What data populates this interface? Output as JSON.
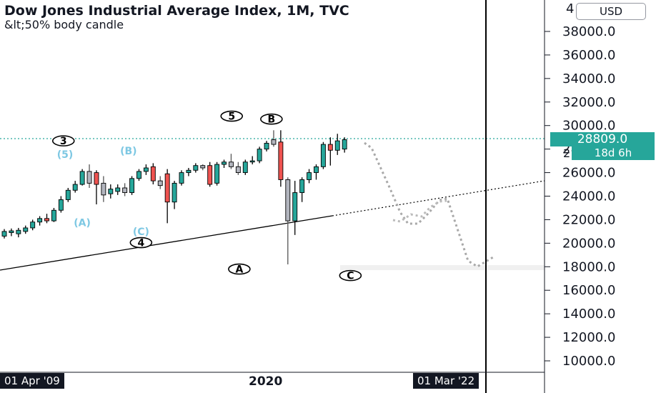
{
  "header": {
    "title": "Dow Jones Industrial Average Index, 1M, TVC",
    "subtitle": "&lt;50% body candle",
    "currency_button": "USD"
  },
  "price_axis": {
    "top_partial": "4",
    "last_price": "28809.0",
    "countdown": "18d 6h",
    "behind_countdown": "2"
  },
  "time_axis": {
    "left_date": "01 Apr '09",
    "year_label": "2020",
    "right_date": "01 Mar '22"
  },
  "colors": {
    "bull": "#26a69a",
    "bear": "#ef5350",
    "retrace": "#b2b5be",
    "wave_light": "#7ec8e3",
    "projection": "#a9a9a9"
  },
  "chart_data": {
    "type": "candlestick",
    "title": "Dow Jones Industrial Average Index, 1M, TVC",
    "subtitle": "&lt;50% body candle",
    "y_ticks": [
      10000,
      12000,
      14000,
      16000,
      18000,
      20000,
      22000,
      24000,
      26000,
      28000,
      30000,
      32000,
      34000,
      36000,
      38000
    ],
    "y_tick_labels": [
      "10000.0",
      "12000.0",
      "14000.0",
      "16000.0",
      "18000.0",
      "20000.0",
      "22000.0",
      "24000.0",
      "26000.0",
      "28000.0",
      "30000.0",
      "32000.0",
      "34000.0",
      "36000.0",
      "38000.0"
    ],
    "ylim": [
      9000,
      40500
    ],
    "last_price": 28809.0,
    "x_labels": [
      "01 Apr '09",
      "2020",
      "01 Mar '22"
    ],
    "candles": [
      {
        "o": 20600,
        "c": 21000,
        "h": 21200,
        "l": 20400,
        "k": "bull"
      },
      {
        "o": 20900,
        "c": 21050,
        "h": 21250,
        "l": 20600,
        "k": "bull"
      },
      {
        "o": 20800,
        "c": 21100,
        "h": 21300,
        "l": 20500,
        "k": "bull"
      },
      {
        "o": 21000,
        "c": 21300,
        "h": 21500,
        "l": 20800,
        "k": "bull"
      },
      {
        "o": 21300,
        "c": 21800,
        "h": 22000,
        "l": 21100,
        "k": "bull"
      },
      {
        "o": 21800,
        "c": 22100,
        "h": 22300,
        "l": 21500,
        "k": "bull"
      },
      {
        "o": 22100,
        "c": 21900,
        "h": 22500,
        "l": 21700,
        "k": "bear"
      },
      {
        "o": 21900,
        "c": 22800,
        "h": 23000,
        "l": 21800,
        "k": "bull"
      },
      {
        "o": 22800,
        "c": 23700,
        "h": 24000,
        "l": 22600,
        "k": "bull"
      },
      {
        "o": 23700,
        "c": 24500,
        "h": 24700,
        "l": 23500,
        "k": "bull"
      },
      {
        "o": 24500,
        "c": 25000,
        "h": 25300,
        "l": 24300,
        "k": "bull"
      },
      {
        "o": 25000,
        "c": 26100,
        "h": 26300,
        "l": 24900,
        "k": "bull"
      },
      {
        "o": 26100,
        "c": 25100,
        "h": 26700,
        "l": 24700,
        "k": "retrace"
      },
      {
        "o": 25000,
        "c": 26000,
        "h": 26200,
        "l": 23300,
        "k": "bear"
      },
      {
        "o": 25100,
        "c": 24100,
        "h": 25700,
        "l": 23500,
        "k": "retrace"
      },
      {
        "o": 24200,
        "c": 24600,
        "h": 25000,
        "l": 23800,
        "k": "bull"
      },
      {
        "o": 24400,
        "c": 24700,
        "h": 25000,
        "l": 24100,
        "k": "bull"
      },
      {
        "o": 24700,
        "c": 24300,
        "h": 25100,
        "l": 24000,
        "k": "retrace"
      },
      {
        "o": 24300,
        "c": 25500,
        "h": 25700,
        "l": 24100,
        "k": "bull"
      },
      {
        "o": 25500,
        "c": 26100,
        "h": 26300,
        "l": 25300,
        "k": "bull"
      },
      {
        "o": 26100,
        "c": 26400,
        "h": 26700,
        "l": 25800,
        "k": "bull"
      },
      {
        "o": 26500,
        "c": 25300,
        "h": 26800,
        "l": 25000,
        "k": "bear"
      },
      {
        "o": 25300,
        "c": 24900,
        "h": 25700,
        "l": 24600,
        "k": "retrace"
      },
      {
        "o": 25900,
        "c": 23500,
        "h": 26300,
        "l": 21700,
        "k": "bear"
      },
      {
        "o": 23500,
        "c": 25100,
        "h": 25300,
        "l": 22900,
        "k": "bull"
      },
      {
        "o": 25100,
        "c": 26000,
        "h": 26200,
        "l": 24900,
        "k": "bull"
      },
      {
        "o": 26000,
        "c": 26200,
        "h": 26400,
        "l": 25700,
        "k": "bull"
      },
      {
        "o": 26200,
        "c": 26600,
        "h": 26800,
        "l": 26000,
        "k": "bull"
      },
      {
        "o": 26600,
        "c": 26400,
        "h": 26700,
        "l": 26200,
        "k": "retrace"
      },
      {
        "o": 26600,
        "c": 25000,
        "h": 26900,
        "l": 24800,
        "k": "bear"
      },
      {
        "o": 25100,
        "c": 26700,
        "h": 26900,
        "l": 24900,
        "k": "bull"
      },
      {
        "o": 26700,
        "c": 26900,
        "h": 27100,
        "l": 26400,
        "k": "bull"
      },
      {
        "o": 26900,
        "c": 26500,
        "h": 27600,
        "l": 26300,
        "k": "retrace"
      },
      {
        "o": 26500,
        "c": 26000,
        "h": 26900,
        "l": 25800,
        "k": "retrace"
      },
      {
        "o": 26000,
        "c": 26900,
        "h": 27100,
        "l": 25800,
        "k": "bull"
      },
      {
        "o": 26900,
        "c": 27000,
        "h": 27400,
        "l": 26700,
        "k": "bull"
      },
      {
        "o": 27000,
        "c": 28000,
        "h": 28200,
        "l": 26800,
        "k": "bull"
      },
      {
        "o": 28000,
        "c": 28500,
        "h": 28700,
        "l": 27800,
        "k": "bull"
      },
      {
        "o": 28400,
        "c": 28800,
        "h": 29600,
        "l": 28200,
        "k": "retrace"
      },
      {
        "o": 28600,
        "c": 25400,
        "h": 29600,
        "l": 24800,
        "k": "bear"
      },
      {
        "o": 25400,
        "c": 21900,
        "h": 25600,
        "l": 18200,
        "k": "retrace"
      },
      {
        "o": 21900,
        "c": 24300,
        "h": 25300,
        "l": 20700,
        "k": "bull"
      },
      {
        "o": 24300,
        "c": 25400,
        "h": 25600,
        "l": 23500,
        "k": "bull"
      },
      {
        "o": 25400,
        "c": 26000,
        "h": 26300,
        "l": 25100,
        "k": "bull"
      },
      {
        "o": 26000,
        "c": 26500,
        "h": 26700,
        "l": 25400,
        "k": "bull"
      },
      {
        "o": 26500,
        "c": 28400,
        "h": 28600,
        "l": 26300,
        "k": "bull"
      },
      {
        "o": 28400,
        "c": 27900,
        "h": 29000,
        "l": 26600,
        "k": "bear"
      },
      {
        "o": 27900,
        "c": 28700,
        "h": 29300,
        "l": 27500,
        "k": "bull"
      },
      {
        "o": 28000,
        "c": 28800,
        "h": 29000,
        "l": 27700,
        "k": "bull"
      }
    ],
    "wave_labels": [
      {
        "text": "3",
        "style": "circle",
        "x": 0.1165,
        "y": 28700
      },
      {
        "text": "(5)",
        "style": "light",
        "x": 0.1195,
        "y": 27550
      },
      {
        "text": "(B)",
        "style": "light",
        "x": 0.236,
        "y": 27850
      },
      {
        "text": "(A)",
        "style": "light",
        "x": 0.151,
        "y": 21750
      },
      {
        "text": "(C)",
        "style": "light",
        "x": 0.259,
        "y": 21000
      },
      {
        "text": "4",
        "style": "circle",
        "x": 0.259,
        "y": 20050
      },
      {
        "text": "5",
        "style": "circle",
        "x": 0.4255,
        "y": 30800
      },
      {
        "text": "B",
        "style": "circle",
        "x": 0.4985,
        "y": 30550
      },
      {
        "text": "A",
        "style": "circle",
        "x": 0.4395,
        "y": 17800
      },
      {
        "text": "C",
        "style": "circle",
        "x": 0.6435,
        "y": 17250
      }
    ]
  }
}
